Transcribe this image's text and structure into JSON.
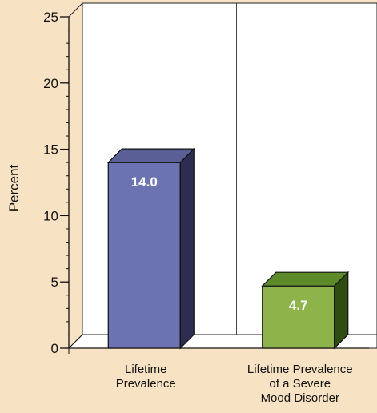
{
  "chart_data": {
    "type": "bar",
    "categories": [
      [
        "Lifetime",
        "Prevalence"
      ],
      [
        "Lifetime Prevalence",
        "of a Severe",
        "Mood Disorder"
      ]
    ],
    "values": [
      14.0,
      4.7
    ],
    "value_labels": [
      "14.0",
      "4.7"
    ],
    "title": "",
    "xlabel": "",
    "ylabel": "Percent",
    "ylim": [
      0,
      25
    ],
    "yticks": [
      0,
      5,
      10,
      15,
      20,
      25
    ],
    "grid": false,
    "bar_colors": [
      {
        "front": "#6b74b0",
        "top": "#5a6096",
        "side": "#2d2d52"
      },
      {
        "front": "#8db34a",
        "top": "#5f8a2a",
        "side": "#2f4d12"
      }
    ],
    "background": "#f7e2c3",
    "plot_background": "#ffffff"
  }
}
